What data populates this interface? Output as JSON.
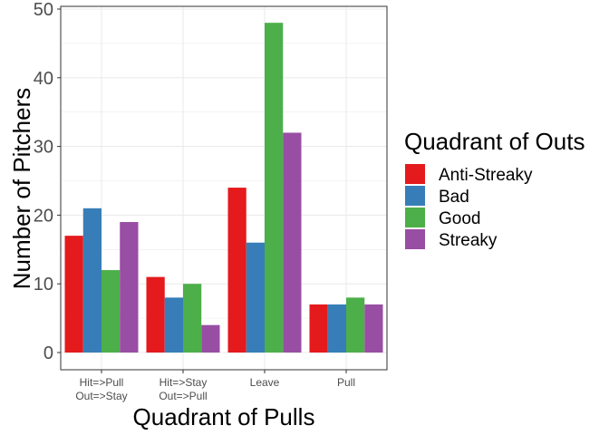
{
  "chart_data": {
    "type": "bar",
    "title": "",
    "xlabel": "Quadrant of Pulls",
    "ylabel": "Number of Pitchers",
    "categories": [
      [
        "Hit=>Pull",
        "Out=>Stay"
      ],
      [
        "Hit=>Stay",
        "Out=>Pull"
      ],
      [
        "Leave"
      ],
      [
        "Pull"
      ]
    ],
    "ylim": [
      0,
      50
    ],
    "yticks": [
      0,
      10,
      20,
      30,
      40,
      50
    ],
    "grid": true,
    "legend": {
      "title": "Quadrant of Outs",
      "position": "right"
    },
    "series": [
      {
        "name": "Anti-Streaky",
        "color": "#E41A1C",
        "values": [
          17,
          11,
          24,
          7
        ]
      },
      {
        "name": "Bad",
        "color": "#377EB8",
        "values": [
          21,
          8,
          16,
          7
        ]
      },
      {
        "name": "Good",
        "color": "#4DAF4A",
        "values": [
          12,
          10,
          48,
          8
        ]
      },
      {
        "name": "Streaky",
        "color": "#984EA3",
        "values": [
          19,
          4,
          32,
          7
        ]
      }
    ]
  }
}
